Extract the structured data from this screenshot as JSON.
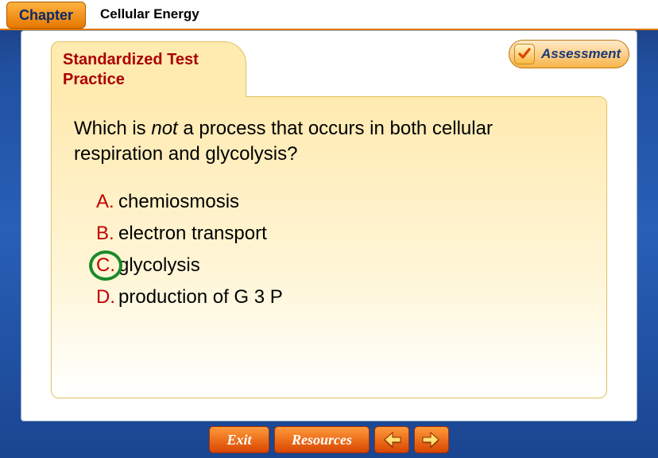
{
  "colors": {
    "frame_gradient_top": "#1a3a7a",
    "frame_gradient_bottom": "#1a4590",
    "tab_orange_top": "#ffb340",
    "tab_orange_bottom": "#e67800",
    "folder_bg_top": "#ffeab0",
    "folder_bg_bottom": "#ffffff",
    "heading_red": "#aa0000",
    "answer_letter_red": "#c00000",
    "correct_circle_green": "#1a8a2a",
    "nav_btn_top": "#ff9a3a",
    "nav_btn_bottom": "#d84500"
  },
  "top": {
    "chapter_label": "Chapter",
    "topic": "Cellular Energy"
  },
  "assessment": {
    "label": "Assessment",
    "icon": "check-icon"
  },
  "folder": {
    "tab_title_line1": "Standardized Test",
    "tab_title_line2": "Practice"
  },
  "question": {
    "prefix": "Which is ",
    "em": "not",
    "suffix": " a process that occurs in both cellular respiration and glycolysis?"
  },
  "answers": [
    {
      "letter": "A.",
      "text": " chemiosmosis",
      "correct": false
    },
    {
      "letter": "B.",
      "text": " electron transport",
      "correct": false
    },
    {
      "letter": "C.",
      "text": " glycolysis",
      "correct": true
    },
    {
      "letter": "D.",
      "text": " production of G 3 P",
      "correct": false
    }
  ],
  "nav": {
    "exit": "Exit",
    "resources": "Resources",
    "prev_icon": "arrow-left-icon",
    "next_icon": "arrow-right-icon"
  }
}
